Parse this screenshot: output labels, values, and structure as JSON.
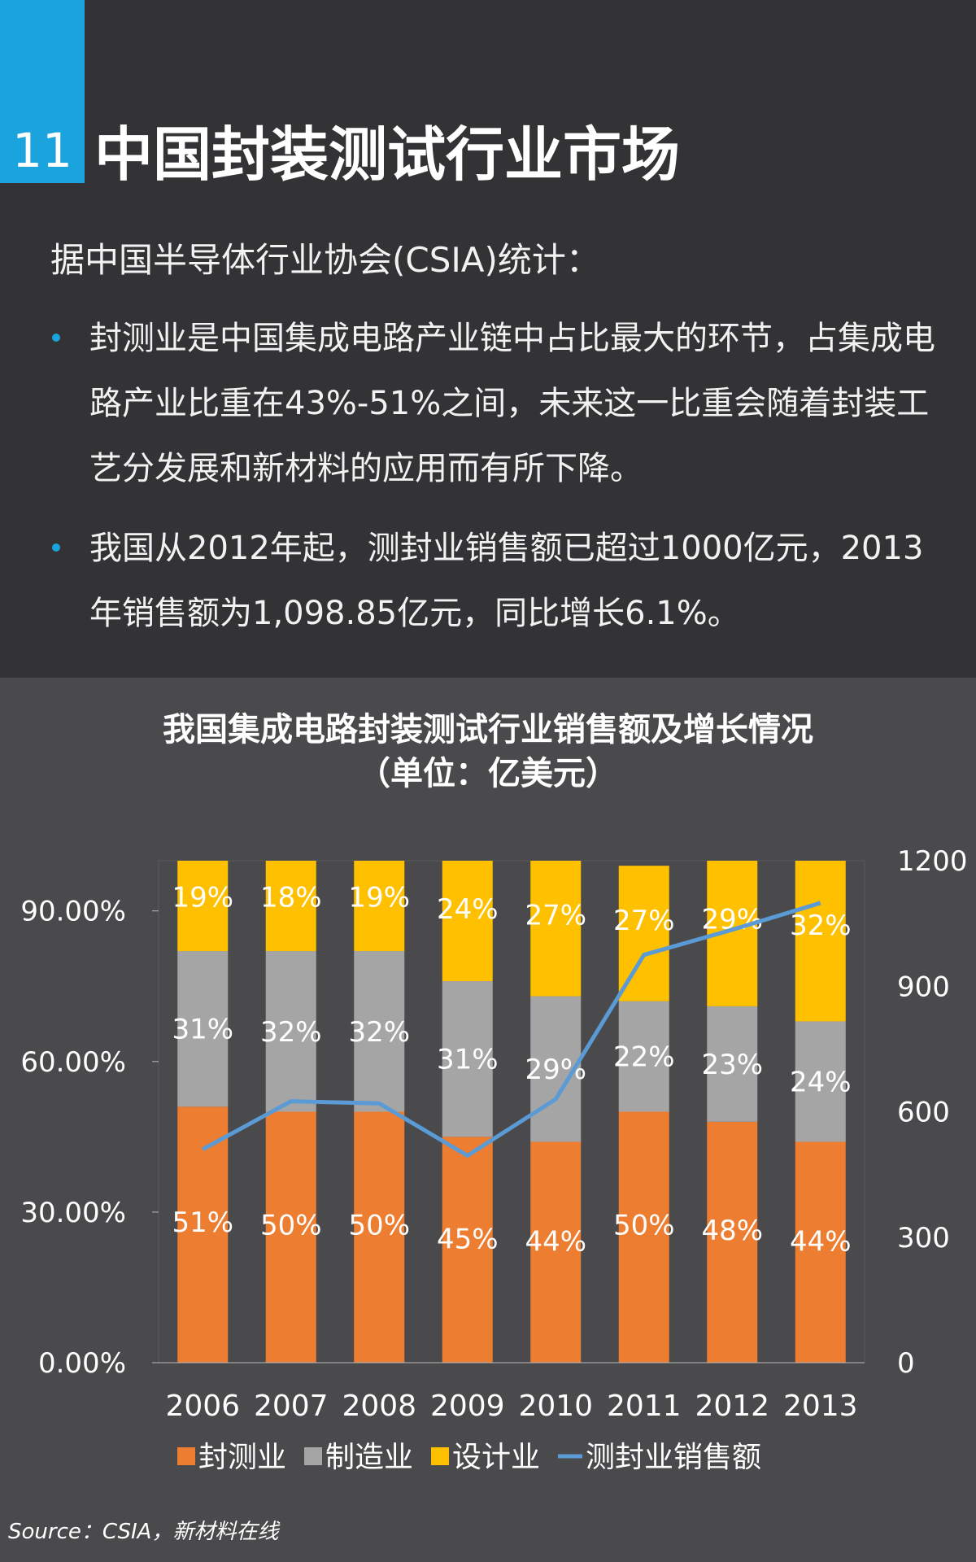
{
  "header": {
    "number": "11",
    "title": "中国封装测试行业市场"
  },
  "body": {
    "intro": "据中国半导体行业协会(CSIA)统计：",
    "bullets": [
      "封测业是中国集成电路产业链中占比最大的环节，占集成电路产业比重在43%-51%之间，未来这一比重会随着封装工艺分发展和新材料的应用而有所下降。",
      "我国从2012年起，测封业销售额已超过1000亿元，2013年销售额为1,098.85亿元，同比增长6.1%。"
    ]
  },
  "chart_data": {
    "type": "bar",
    "stacked": true,
    "title": "我国集成电路封装测试行业销售额及增长情况",
    "subtitle": "（单位：亿美元）",
    "categories": [
      "2006",
      "2007",
      "2008",
      "2009",
      "2010",
      "2011",
      "2012",
      "2013"
    ],
    "series": [
      {
        "name": "封测业",
        "kind": "bar",
        "color": "#ed7d31",
        "values": [
          51,
          50,
          50,
          45,
          44,
          50,
          48,
          44
        ],
        "labels": [
          "51%",
          "50%",
          "50%",
          "45%",
          "44%",
          "50%",
          "48%",
          "44%"
        ]
      },
      {
        "name": "制造业",
        "kind": "bar",
        "color": "#a5a5a5",
        "values": [
          31,
          32,
          32,
          31,
          29,
          22,
          23,
          24
        ],
        "labels": [
          "31%",
          "32%",
          "32%",
          "31%",
          "29%",
          "22%",
          "23%",
          "24%"
        ]
      },
      {
        "name": "设计业",
        "kind": "bar",
        "color": "#ffc000",
        "values": [
          19,
          18,
          19,
          24,
          27,
          27,
          29,
          32
        ],
        "labels": [
          "19%",
          "18%",
          "19%",
          "24%",
          "27%",
          "27%",
          "29%",
          "32%"
        ]
      },
      {
        "name": "测封业销售额",
        "kind": "line",
        "axis": "right",
        "color": "#5b9bd5",
        "values": [
          510,
          625,
          620,
          495,
          630,
          975,
          1035,
          1099
        ]
      }
    ],
    "left_axis": {
      "ylim": [
        0,
        100
      ],
      "ticks": [
        "0.00%",
        "30.00%",
        "60.00%",
        "90.00%"
      ],
      "tick_values": [
        0,
        30,
        60,
        90
      ]
    },
    "right_axis": {
      "ylim": [
        0,
        1200
      ],
      "ticks": [
        "0",
        "300",
        "600",
        "900",
        "1200"
      ],
      "tick_values": [
        0,
        300,
        600,
        900,
        1200
      ]
    },
    "legend": "bottom",
    "grid": false
  },
  "footer": {
    "source": "Source：CSIA，新材料在线"
  }
}
